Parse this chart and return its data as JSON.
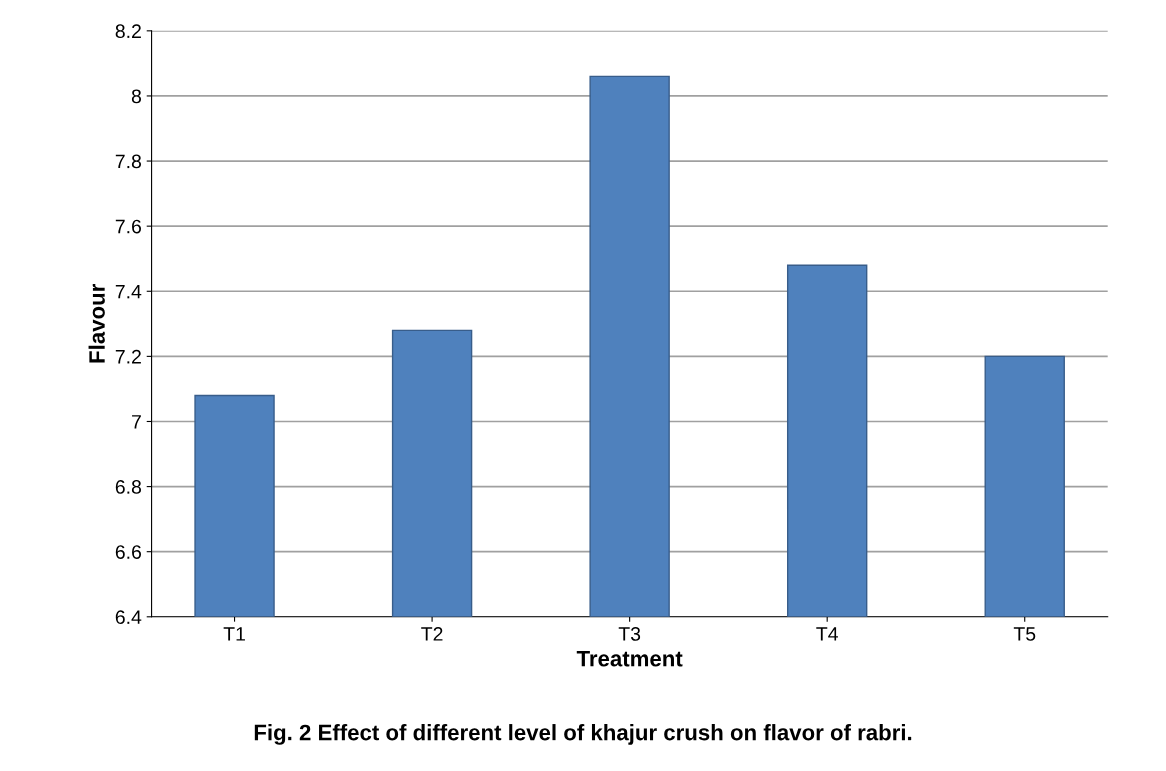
{
  "chart_data": {
    "type": "bar",
    "xlabel": "Treatment",
    "ylabel": "Flavour",
    "annotations": [
      "Fig. 2 Effect of different level of khajur crush on flavor of rabri."
    ],
    "categories": [
      "T1",
      "T2",
      "T3",
      "T4",
      "T5"
    ],
    "values": [
      7.08,
      7.28,
      8.06,
      7.48,
      7.2
    ],
    "color": "#4f81bd",
    "ylim": [
      6.4,
      8.2
    ],
    "yticks": [
      6.4,
      6.6,
      6.8,
      7,
      7.2,
      7.4,
      7.6,
      7.8,
      8,
      8.2
    ],
    "grid": "y"
  }
}
